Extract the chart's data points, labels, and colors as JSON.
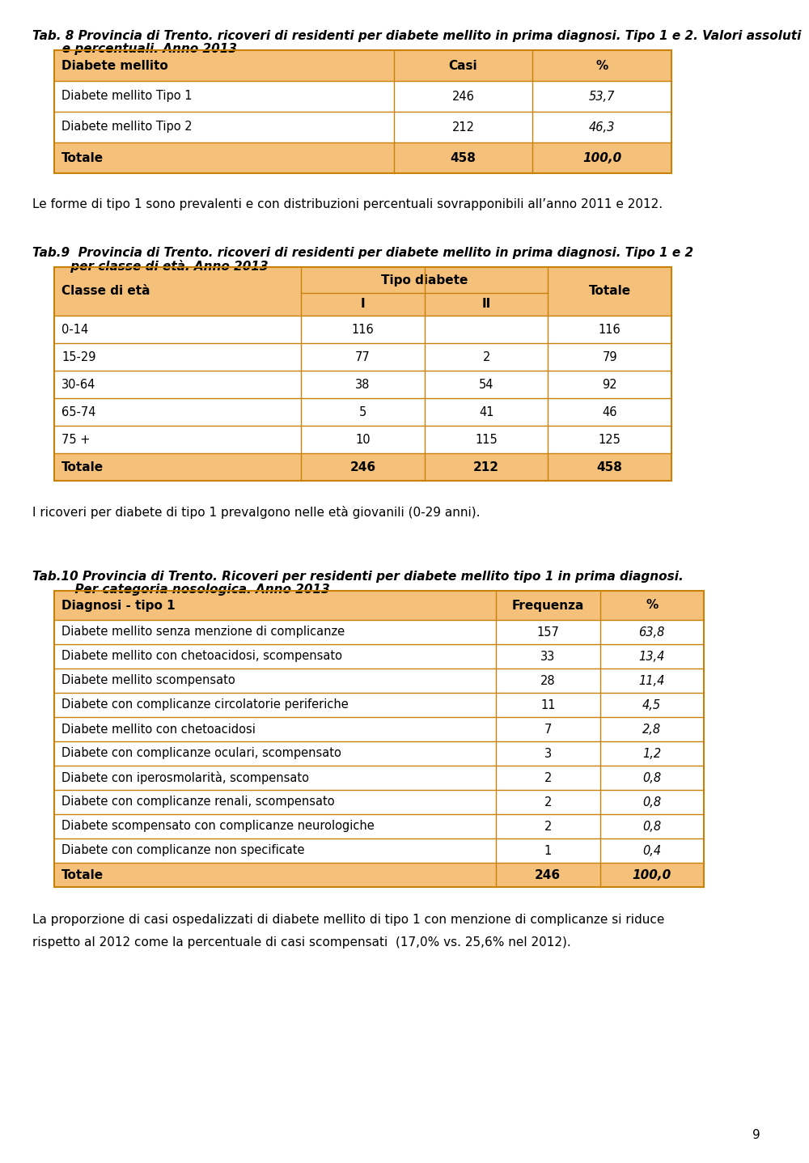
{
  "page_bg": "#ffffff",
  "header_bg": "#f5c07a",
  "totale_bg": "#f5c07a",
  "border_color": "#c8820a",
  "title8_line1": "Tab. 8 Provincia di Trento. ricoveri di residenti per diabete mellito in prima diagnosi. Tipo 1 e 2. Valori assoluti",
  "title8_line2": "       e percentuali. Anno 2013",
  "tab8_headers": [
    "Diabete mellito",
    "Casi",
    "%"
  ],
  "tab8_rows": [
    [
      "Diabete mellito Tipo 1",
      "246",
      "53,7"
    ],
    [
      "Diabete mellito Tipo 2",
      "212",
      "46,3"
    ]
  ],
  "tab8_totale": [
    "Totale",
    "458",
    "100,0"
  ],
  "text8": "Le forme di tipo 1 sono prevalenti e con distribuzioni percentuali sovrapponibili all’anno 2011 e 2012.",
  "title9_line1": "Tab.9  Provincia di Trento. ricoveri di residenti per diabete mellito in prima diagnosi. Tipo 1 e 2",
  "title9_line2": "         per classe di età. Anno 2013",
  "tab9_col1_header": "Classe di età",
  "tab9_tipo_header": "Tipo diabete",
  "tab9_totale_header": "Totale",
  "tab9_rows": [
    [
      "0-14",
      "116",
      "",
      "116"
    ],
    [
      "15-29",
      "77",
      "2",
      "79"
    ],
    [
      "30-64",
      "38",
      "54",
      "92"
    ],
    [
      "65-74",
      "5",
      "41",
      "46"
    ],
    [
      "75 +",
      "10",
      "115",
      "125"
    ]
  ],
  "tab9_totale": [
    "Totale",
    "246",
    "212",
    "458"
  ],
  "text9": "I ricoveri per diabete di tipo 1 prevalgono nelle età giovanili (0-29 anni).",
  "title10_line1": "Tab.10 Provincia di Trento. Ricoveri per residenti per diabete mellito tipo 1 in prima diagnosi.",
  "title10_line2": "          Per categoria nosologica. Anno 2013",
  "tab10_headers": [
    "Diagnosi - tipo 1",
    "Frequenza",
    "%"
  ],
  "tab10_rows": [
    [
      "Diabete mellito senza menzione di complicanze",
      "157",
      "63,8"
    ],
    [
      "Diabete mellito con chetoacidosi, scompensato",
      "33",
      "13,4"
    ],
    [
      "Diabete mellito scompensato",
      "28",
      "11,4"
    ],
    [
      "Diabete con complicanze circolatorie periferiche",
      "11",
      "4,5"
    ],
    [
      "Diabete mellito con chetoacidosi",
      "7",
      "2,8"
    ],
    [
      "Diabete con complicanze oculari, scompensato",
      "3",
      "1,2"
    ],
    [
      "Diabete con iperosmolarità, scompensato",
      "2",
      "0,8"
    ],
    [
      "Diabete con complicanze renali, scompensato",
      "2",
      "0,8"
    ],
    [
      "Diabete scompensato con complicanze neurologiche",
      "2",
      "0,8"
    ],
    [
      "Diabete con complicanze non specificate",
      "1",
      "0,4"
    ]
  ],
  "tab10_totale": [
    "Totale",
    "246",
    "100,0"
  ],
  "text10_line1": "La proporzione di casi ospedalizzati di diabete mellito di tipo 1 con menzione di complicanze si riduce",
  "text10_line2": "rispetto al 2012 come la percentuale di casi scompensati  (17,0% vs. 25,6% nel 2012).",
  "page_number": "9"
}
